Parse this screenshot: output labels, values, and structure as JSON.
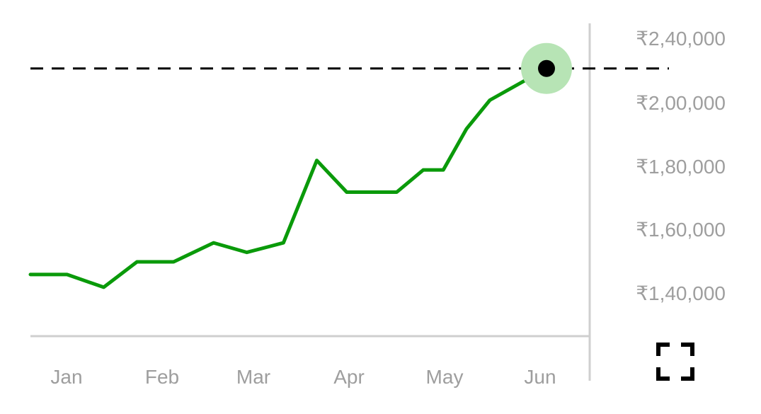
{
  "chart_data": {
    "type": "line",
    "currency_symbol": "₹",
    "y_ticks": [
      "₹2,40,000",
      "₹2,00,000",
      "₹1,80,000",
      "₹1,60,000",
      "₹1,40,000"
    ],
    "x_ticks": [
      "Jan",
      "Feb",
      "Mar",
      "Apr",
      "May",
      "Jun"
    ],
    "ylim": [
      120000,
      250000
    ],
    "grid": false,
    "series": [
      {
        "color": "#0a9a0a",
        "points": [
          {
            "x": "2024-01-01",
            "y": 137000
          },
          {
            "x": "2024-01-12",
            "y": 137000
          },
          {
            "x": "2024-01-23",
            "y": 133000
          },
          {
            "x": "2024-02-02",
            "y": 141000
          },
          {
            "x": "2024-02-13",
            "y": 141000
          },
          {
            "x": "2024-02-25",
            "y": 147000
          },
          {
            "x": "2024-03-06",
            "y": 144000
          },
          {
            "x": "2024-03-17",
            "y": 147000
          },
          {
            "x": "2024-03-27",
            "y": 173000
          },
          {
            "x": "2024-04-05",
            "y": 163000
          },
          {
            "x": "2024-04-20",
            "y": 163000
          },
          {
            "x": "2024-04-28",
            "y": 170000
          },
          {
            "x": "2024-05-04",
            "y": 170000
          },
          {
            "x": "2024-05-11",
            "y": 183000
          },
          {
            "x": "2024-05-18",
            "y": 192000
          },
          {
            "x": "2024-06-04",
            "y": 202000
          }
        ]
      }
    ],
    "reference_line": {
      "y": 202000,
      "style": "dashed",
      "color": "#000000"
    },
    "highlight_point": {
      "x": "2024-06-04",
      "y": 202000,
      "halo_color": "#b7e4b5",
      "dot_color": "#000000"
    }
  },
  "controls": {
    "fullscreen_icon": "fullscreen-icon"
  }
}
